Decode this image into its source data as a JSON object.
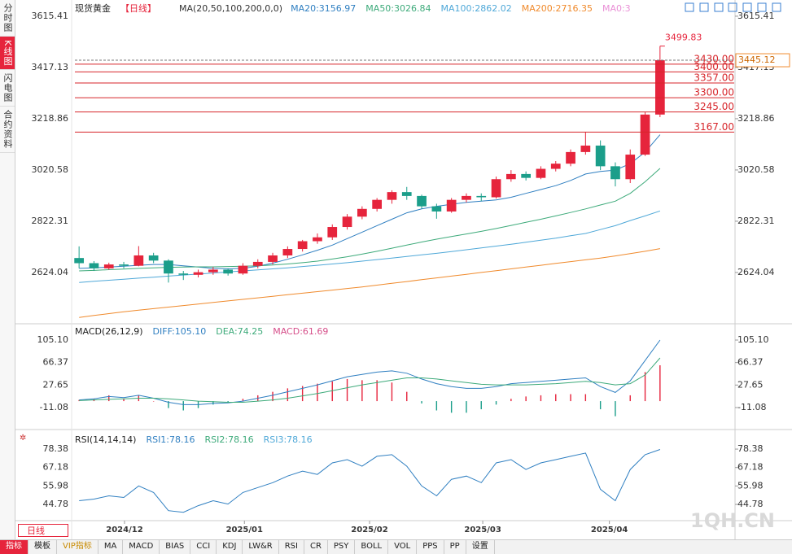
{
  "ui": {
    "sidebar": [
      "分时图",
      "K线图",
      "闪电图",
      "合约资料"
    ],
    "period_button": "日线",
    "toolbar": [
      "指标",
      "模板",
      "VIP指标",
      "MA",
      "MACD",
      "BIAS",
      "CCI",
      "KDJ",
      "LW&R",
      "RSI",
      "CR",
      "PSY",
      "BOLL",
      "VOL",
      "PPS",
      "PP",
      "设置"
    ],
    "watermark": "1QH.CN"
  },
  "chart_data": [
    {
      "type": "candlestick",
      "title": "现货黄金",
      "subtitle": "【日线】",
      "indicator": "MA(20,50,100,200,0,0)",
      "legend_extra": {
        "name": "MA0:3",
        "color": "#e98fd6"
      },
      "xlim": [
        -0.5,
        39.5
      ],
      "ylim": [
        2435,
        3653
      ],
      "yticks": [
        3615.41,
        3417.13,
        3218.86,
        3020.58,
        2822.31,
        2624.04
      ],
      "up_color": "#e6243c",
      "down_color": "#1b9e8a",
      "open": [
        2680,
        2660,
        2640,
        2655,
        2650,
        2690,
        2670,
        2620,
        2615,
        2625,
        2635,
        2620,
        2650,
        2665,
        2690,
        2715,
        2745,
        2760,
        2800,
        2840,
        2870,
        2905,
        2935,
        2920,
        2880,
        2860,
        2905,
        2920,
        2915,
        2985,
        3005,
        2990,
        3025,
        3045,
        3090,
        3115,
        3035,
        2985,
        3080,
        3235
      ],
      "high": [
        2725,
        2668,
        2662,
        2665,
        2726,
        2700,
        2675,
        2630,
        2635,
        2645,
        2640,
        2660,
        2675,
        2700,
        2725,
        2750,
        2775,
        2810,
        2850,
        2880,
        2912,
        2942,
        2955,
        2925,
        2890,
        2912,
        2930,
        2930,
        2995,
        3020,
        3015,
        3035,
        3055,
        3100,
        3167,
        3135,
        3050,
        3100,
        3245,
        3499.83
      ],
      "low": [
        2640,
        2630,
        2635,
        2640,
        2648,
        2660,
        2585,
        2595,
        2605,
        2615,
        2612,
        2615,
        2640,
        2655,
        2680,
        2705,
        2735,
        2750,
        2790,
        2830,
        2860,
        2890,
        2905,
        2870,
        2832,
        2855,
        2895,
        2900,
        2910,
        2975,
        2980,
        2985,
        3015,
        3035,
        3080,
        3020,
        2957,
        2970,
        3075,
        3225
      ],
      "close": [
        2660,
        2640,
        2655,
        2650,
        2690,
        2670,
        2620,
        2615,
        2625,
        2635,
        2620,
        2650,
        2665,
        2690,
        2715,
        2745,
        2760,
        2800,
        2840,
        2870,
        2905,
        2935,
        2920,
        2880,
        2860,
        2905,
        2920,
        2915,
        2985,
        3005,
        2990,
        3025,
        3045,
        3090,
        3115,
        3035,
        2985,
        3080,
        3235,
        3445.12
      ],
      "series": [
        {
          "name": "MA20:3156.97",
          "color": "#2f7fc1",
          "values": [
            2640,
            2642,
            2645,
            2648,
            2652,
            2655,
            2655,
            2650,
            2645,
            2640,
            2638,
            2640,
            2648,
            2660,
            2675,
            2692,
            2710,
            2730,
            2755,
            2780,
            2805,
            2830,
            2855,
            2870,
            2880,
            2888,
            2895,
            2900,
            2905,
            2915,
            2930,
            2945,
            2960,
            2980,
            3005,
            3015,
            3020,
            3045,
            3090,
            3156.97
          ]
        },
        {
          "name": "MA50:3026.84",
          "color": "#3daa7a",
          "values": [
            2630,
            2632,
            2635,
            2637,
            2640,
            2642,
            2644,
            2645,
            2646,
            2646,
            2647,
            2648,
            2650,
            2653,
            2657,
            2662,
            2668,
            2676,
            2685,
            2695,
            2706,
            2718,
            2730,
            2742,
            2753,
            2763,
            2773,
            2783,
            2794,
            2806,
            2818,
            2830,
            2843,
            2856,
            2870,
            2885,
            2900,
            2930,
            2975,
            3026.84
          ]
        },
        {
          "name": "MA100:2862.02",
          "color": "#4fa8d8",
          "values": [
            2585,
            2590,
            2594,
            2598,
            2602,
            2606,
            2610,
            2614,
            2618,
            2622,
            2626,
            2630,
            2634,
            2638,
            2642,
            2647,
            2652,
            2657,
            2662,
            2668,
            2674,
            2680,
            2686,
            2692,
            2698,
            2705,
            2712,
            2719,
            2726,
            2733,
            2741,
            2749,
            2757,
            2766,
            2775,
            2790,
            2805,
            2825,
            2843,
            2862.02
          ]
        },
        {
          "name": "MA200:2716.35",
          "color": "#f08a2c",
          "values": [
            2450,
            2458,
            2465,
            2472,
            2478,
            2484,
            2490,
            2496,
            2502,
            2508,
            2514,
            2520,
            2526,
            2532,
            2538,
            2544,
            2550,
            2556,
            2562,
            2568,
            2575,
            2582,
            2589,
            2596,
            2603,
            2610,
            2617,
            2624,
            2631,
            2638,
            2645,
            2652,
            2659,
            2666,
            2673,
            2680,
            2688,
            2697,
            2706,
            2716.35
          ]
        }
      ],
      "levels": [
        {
          "value": 3430,
          "label": "3430.00"
        },
        {
          "value": 3400,
          "label": "3400.00"
        },
        {
          "value": 3357,
          "label": "3357.00"
        },
        {
          "value": 3300,
          "label": "3300.00"
        },
        {
          "value": 3245,
          "label": "3245.00"
        },
        {
          "value": 3167,
          "label": "3167.00"
        }
      ],
      "level_color": "#d7262b"
    },
    {
      "type": "macd",
      "title": "MACD(26,12,9)",
      "ylim": [
        -30.7,
        130.3
      ],
      "yticks": [
        {
          "value": 105.1,
          "label": "105.10"
        },
        66.37,
        27.65,
        -11.08
      ],
      "series": [
        {
          "name": "DIFF:105.10",
          "color": "#2f7fc1",
          "values": [
            2,
            4,
            8,
            6,
            10,
            5,
            -2,
            -6,
            -6,
            -4,
            -3,
            0,
            5,
            10,
            16,
            22,
            28,
            35,
            42,
            46,
            50,
            52,
            48,
            38,
            30,
            25,
            22,
            22,
            25,
            30,
            32,
            34,
            36,
            38,
            40,
            25,
            15,
            35,
            70,
            105.1
          ]
        },
        {
          "name": "DEA:74.25",
          "color": "#3daa7a",
          "values": [
            1,
            2,
            3,
            4,
            5,
            5,
            4,
            2,
            0,
            -1,
            -2,
            -2,
            0,
            2,
            5,
            9,
            13,
            18,
            23,
            28,
            32,
            36,
            40,
            40,
            38,
            35,
            32,
            29,
            28,
            28,
            28,
            29,
            30,
            32,
            34,
            32,
            28,
            30,
            45,
            74.25
          ]
        }
      ],
      "hist": {
        "name": "MACD:61.69",
        "color": "#d64f8a",
        "values": [
          2,
          4,
          10,
          4,
          10,
          0,
          -12,
          -16,
          -12,
          -6,
          -2,
          4,
          10,
          16,
          22,
          26,
          30,
          34,
          38,
          36,
          36,
          32,
          16,
          -4,
          -16,
          -20,
          -20,
          -14,
          -6,
          4,
          8,
          10,
          12,
          12,
          12,
          -14,
          -26,
          10,
          50,
          61.69
        ]
      }
    },
    {
      "type": "line",
      "title": "RSI(14,14,14)",
      "ylim": [
        34.9,
        88.3
      ],
      "yticks": [
        78.38,
        67.18,
        55.98,
        44.78
      ],
      "series": [
        {
          "name": "RSI1:78.16",
          "color": "#2f7fc1",
          "values": [
            47,
            48,
            50,
            49,
            56,
            52,
            41,
            40,
            44,
            47,
            45,
            52,
            55,
            58,
            62,
            65,
            63,
            70,
            72,
            68,
            74,
            75,
            68,
            56,
            50,
            60,
            62,
            58,
            70,
            72,
            66,
            70,
            72,
            74,
            76,
            54,
            47,
            66,
            75,
            78.16
          ]
        }
      ],
      "legend_extra": [
        {
          "name": "RSI2:78.16",
          "color": "#3daa7a"
        },
        {
          "name": "RSI3:78.16",
          "color": "#4fa8d8"
        }
      ],
      "xticks": [
        {
          "value": 3.05,
          "label": "2024/12"
        },
        {
          "value": 11.1,
          "label": "2025/01"
        },
        {
          "value": 19.5,
          "label": "2025/02"
        },
        {
          "value": 27.1,
          "label": "2025/03"
        },
        {
          "value": 35.6,
          "label": "2025/04"
        }
      ]
    }
  ]
}
